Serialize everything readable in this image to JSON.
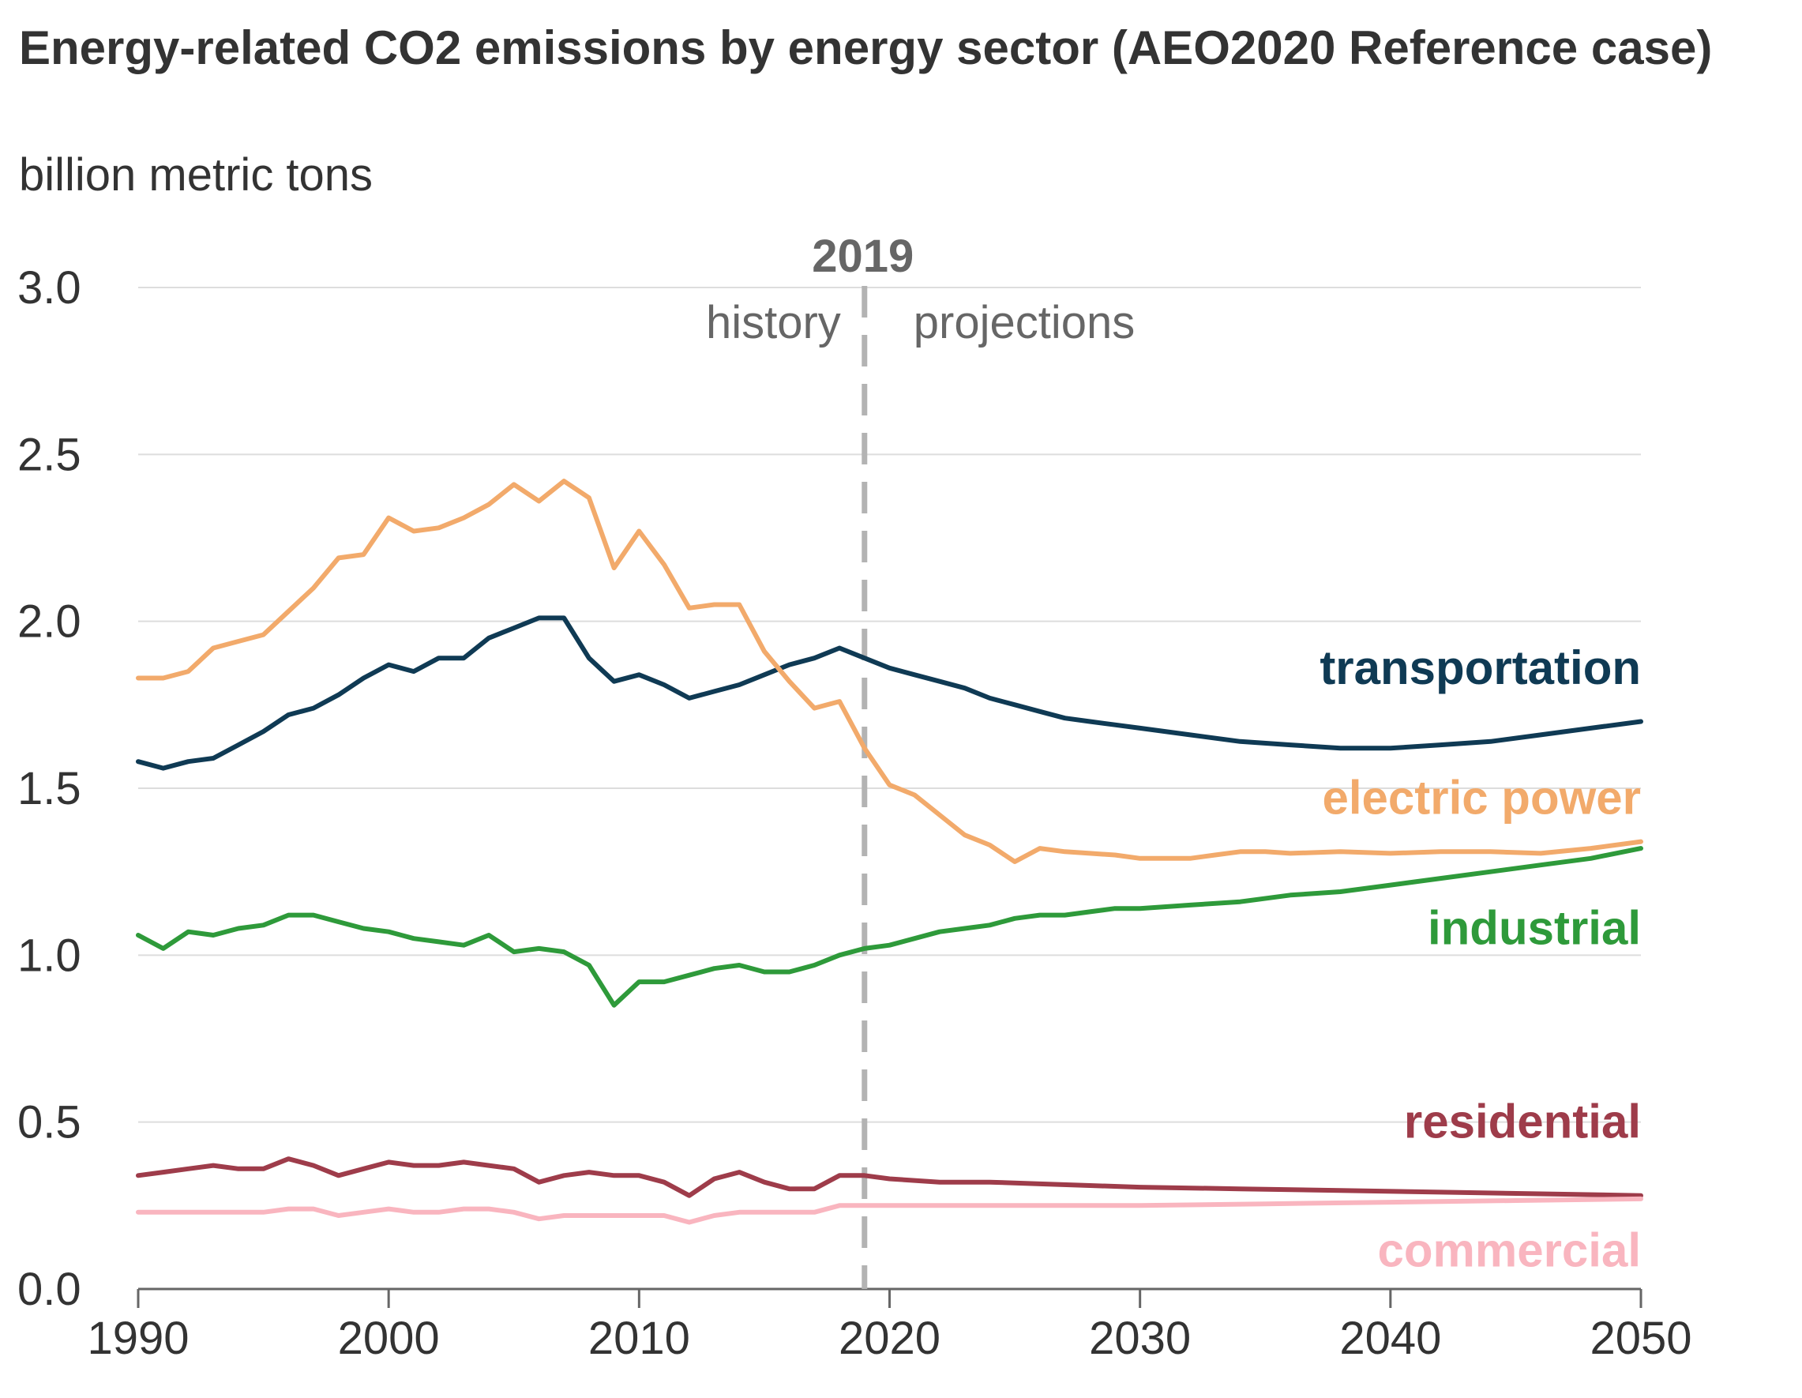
{
  "chart_data": {
    "type": "line",
    "title": "Energy-related CO2 emissions by energy sector (AEO2020 Reference case)",
    "subtitle": "billion metric tons",
    "xlabel": "",
    "ylabel": "billion metric tons",
    "xlim": [
      1990,
      2050
    ],
    "ylim": [
      0,
      3.0
    ],
    "x_ticks": [
      "1990",
      "2000",
      "2010",
      "2020",
      "2030",
      "2040",
      "2050"
    ],
    "x_tick_values": [
      1990,
      2000,
      2010,
      2020,
      2030,
      2040,
      2050
    ],
    "y_ticks": [
      "0.0",
      "0.5",
      "1.0",
      "1.5",
      "2.0",
      "2.5",
      "3.0"
    ],
    "y_tick_values": [
      0,
      0.5,
      1.0,
      1.5,
      2.0,
      2.5,
      3.0
    ],
    "grid": true,
    "divider": {
      "year": 2019,
      "label": "2019",
      "left_label": "history",
      "right_label": "projections",
      "color": "#b3b3b3"
    },
    "series": [
      {
        "name": "transportation",
        "color": "#0f3a54",
        "x": [
          1990,
          1991,
          1992,
          1993,
          1994,
          1995,
          1996,
          1997,
          1998,
          1999,
          2000,
          2001,
          2002,
          2003,
          2004,
          2005,
          2006,
          2007,
          2008,
          2009,
          2010,
          2011,
          2012,
          2013,
          2014,
          2015,
          2016,
          2017,
          2018,
          2019,
          2020,
          2021,
          2022,
          2023,
          2024,
          2025,
          2026,
          2027,
          2028,
          2029,
          2030,
          2032,
          2034,
          2036,
          2038,
          2040,
          2042,
          2044,
          2046,
          2048,
          2050
        ],
        "y": [
          1.58,
          1.56,
          1.58,
          1.59,
          1.63,
          1.67,
          1.72,
          1.74,
          1.78,
          1.83,
          1.87,
          1.85,
          1.89,
          1.89,
          1.95,
          1.98,
          2.01,
          2.01,
          1.89,
          1.82,
          1.84,
          1.81,
          1.77,
          1.79,
          1.81,
          1.84,
          1.87,
          1.89,
          1.92,
          1.89,
          1.86,
          1.84,
          1.82,
          1.8,
          1.77,
          1.75,
          1.73,
          1.71,
          1.7,
          1.69,
          1.68,
          1.66,
          1.64,
          1.63,
          1.62,
          1.62,
          1.63,
          1.64,
          1.66,
          1.68,
          1.7
        ]
      },
      {
        "name": "electric power",
        "color": "#f2aa6b",
        "x": [
          1990,
          1991,
          1992,
          1993,
          1994,
          1995,
          1996,
          1997,
          1998,
          1999,
          2000,
          2001,
          2002,
          2003,
          2004,
          2005,
          2006,
          2007,
          2008,
          2009,
          2010,
          2011,
          2012,
          2013,
          2014,
          2015,
          2016,
          2017,
          2018,
          2019,
          2020,
          2021,
          2022,
          2023,
          2024,
          2025,
          2026,
          2027,
          2028,
          2029,
          2030,
          2031,
          2032,
          2033,
          2034,
          2035,
          2036,
          2038,
          2040,
          2042,
          2044,
          2046,
          2048,
          2050
        ],
        "y": [
          1.83,
          1.83,
          1.85,
          1.92,
          1.94,
          1.96,
          2.03,
          2.1,
          2.19,
          2.2,
          2.31,
          2.27,
          2.28,
          2.31,
          2.35,
          2.41,
          2.36,
          2.42,
          2.37,
          2.16,
          2.27,
          2.17,
          2.04,
          2.05,
          2.05,
          1.91,
          1.82,
          1.74,
          1.76,
          1.62,
          1.51,
          1.48,
          1.42,
          1.36,
          1.33,
          1.28,
          1.32,
          1.31,
          1.305,
          1.3,
          1.29,
          1.29,
          1.29,
          1.3,
          1.31,
          1.31,
          1.305,
          1.31,
          1.305,
          1.31,
          1.31,
          1.305,
          1.32,
          1.34
        ]
      },
      {
        "name": "industrial",
        "color": "#2e9a3a",
        "x": [
          1990,
          1991,
          1992,
          1993,
          1994,
          1995,
          1996,
          1997,
          1998,
          1999,
          2000,
          2001,
          2002,
          2003,
          2004,
          2005,
          2006,
          2007,
          2008,
          2009,
          2010,
          2011,
          2012,
          2013,
          2014,
          2015,
          2016,
          2017,
          2018,
          2019,
          2020,
          2021,
          2022,
          2023,
          2024,
          2025,
          2026,
          2027,
          2028,
          2029,
          2030,
          2032,
          2034,
          2036,
          2038,
          2040,
          2042,
          2044,
          2046,
          2048,
          2050
        ],
        "y": [
          1.06,
          1.02,
          1.07,
          1.06,
          1.08,
          1.09,
          1.12,
          1.12,
          1.1,
          1.08,
          1.07,
          1.05,
          1.04,
          1.03,
          1.06,
          1.01,
          1.02,
          1.01,
          0.97,
          0.85,
          0.92,
          0.92,
          0.94,
          0.96,
          0.97,
          0.95,
          0.95,
          0.97,
          1.0,
          1.02,
          1.03,
          1.05,
          1.07,
          1.08,
          1.09,
          1.11,
          1.12,
          1.12,
          1.13,
          1.14,
          1.14,
          1.15,
          1.16,
          1.18,
          1.19,
          1.21,
          1.23,
          1.25,
          1.27,
          1.29,
          1.32
        ]
      },
      {
        "name": "residential",
        "color": "#9e3c4a",
        "x": [
          1990,
          1991,
          1992,
          1993,
          1994,
          1995,
          1996,
          1997,
          1998,
          1999,
          2000,
          2001,
          2002,
          2003,
          2004,
          2005,
          2006,
          2007,
          2008,
          2009,
          2010,
          2011,
          2012,
          2013,
          2014,
          2015,
          2016,
          2017,
          2018,
          2019,
          2020,
          2022,
          2024,
          2026,
          2028,
          2030,
          2034,
          2038,
          2042,
          2046,
          2050
        ],
        "y": [
          0.34,
          0.35,
          0.36,
          0.37,
          0.36,
          0.36,
          0.39,
          0.37,
          0.34,
          0.36,
          0.38,
          0.37,
          0.37,
          0.38,
          0.37,
          0.36,
          0.32,
          0.34,
          0.35,
          0.34,
          0.34,
          0.32,
          0.28,
          0.33,
          0.35,
          0.32,
          0.3,
          0.3,
          0.34,
          0.34,
          0.33,
          0.32,
          0.32,
          0.315,
          0.31,
          0.305,
          0.3,
          0.295,
          0.29,
          0.285,
          0.28
        ]
      },
      {
        "name": "commercial",
        "color": "#f9b5bf",
        "x": [
          1990,
          1991,
          1992,
          1993,
          1994,
          1995,
          1996,
          1997,
          1998,
          1999,
          2000,
          2001,
          2002,
          2003,
          2004,
          2005,
          2006,
          2007,
          2008,
          2009,
          2010,
          2011,
          2012,
          2013,
          2014,
          2015,
          2016,
          2017,
          2018,
          2019,
          2020,
          2025,
          2030,
          2035,
          2040,
          2045,
          2050
        ],
        "y": [
          0.23,
          0.23,
          0.23,
          0.23,
          0.23,
          0.23,
          0.24,
          0.24,
          0.22,
          0.23,
          0.24,
          0.23,
          0.23,
          0.24,
          0.24,
          0.23,
          0.21,
          0.22,
          0.22,
          0.22,
          0.22,
          0.22,
          0.2,
          0.22,
          0.23,
          0.23,
          0.23,
          0.23,
          0.25,
          0.25,
          0.25,
          0.25,
          0.25,
          0.255,
          0.26,
          0.265,
          0.27
        ]
      }
    ],
    "end_labels": [
      {
        "name": "transportation",
        "text": "transportation",
        "color": "#0f3a54",
        "y": 1.86
      },
      {
        "name": "electric power",
        "text": "electric power",
        "color": "#f2aa6b",
        "y": 1.47
      },
      {
        "name": "industrial",
        "text": "industrial",
        "color": "#2e9a3a",
        "y": 1.08
      },
      {
        "name": "residential",
        "text": "residential",
        "color": "#9e3c4a",
        "y": 0.5
      },
      {
        "name": "commercial",
        "text": "commercial",
        "color": "#f9b5bf",
        "y": 0.115
      }
    ],
    "colors": {
      "grid": "#dddddd",
      "axis": "#666666",
      "tick_text": "#333333",
      "divider_text": "#666666"
    }
  }
}
